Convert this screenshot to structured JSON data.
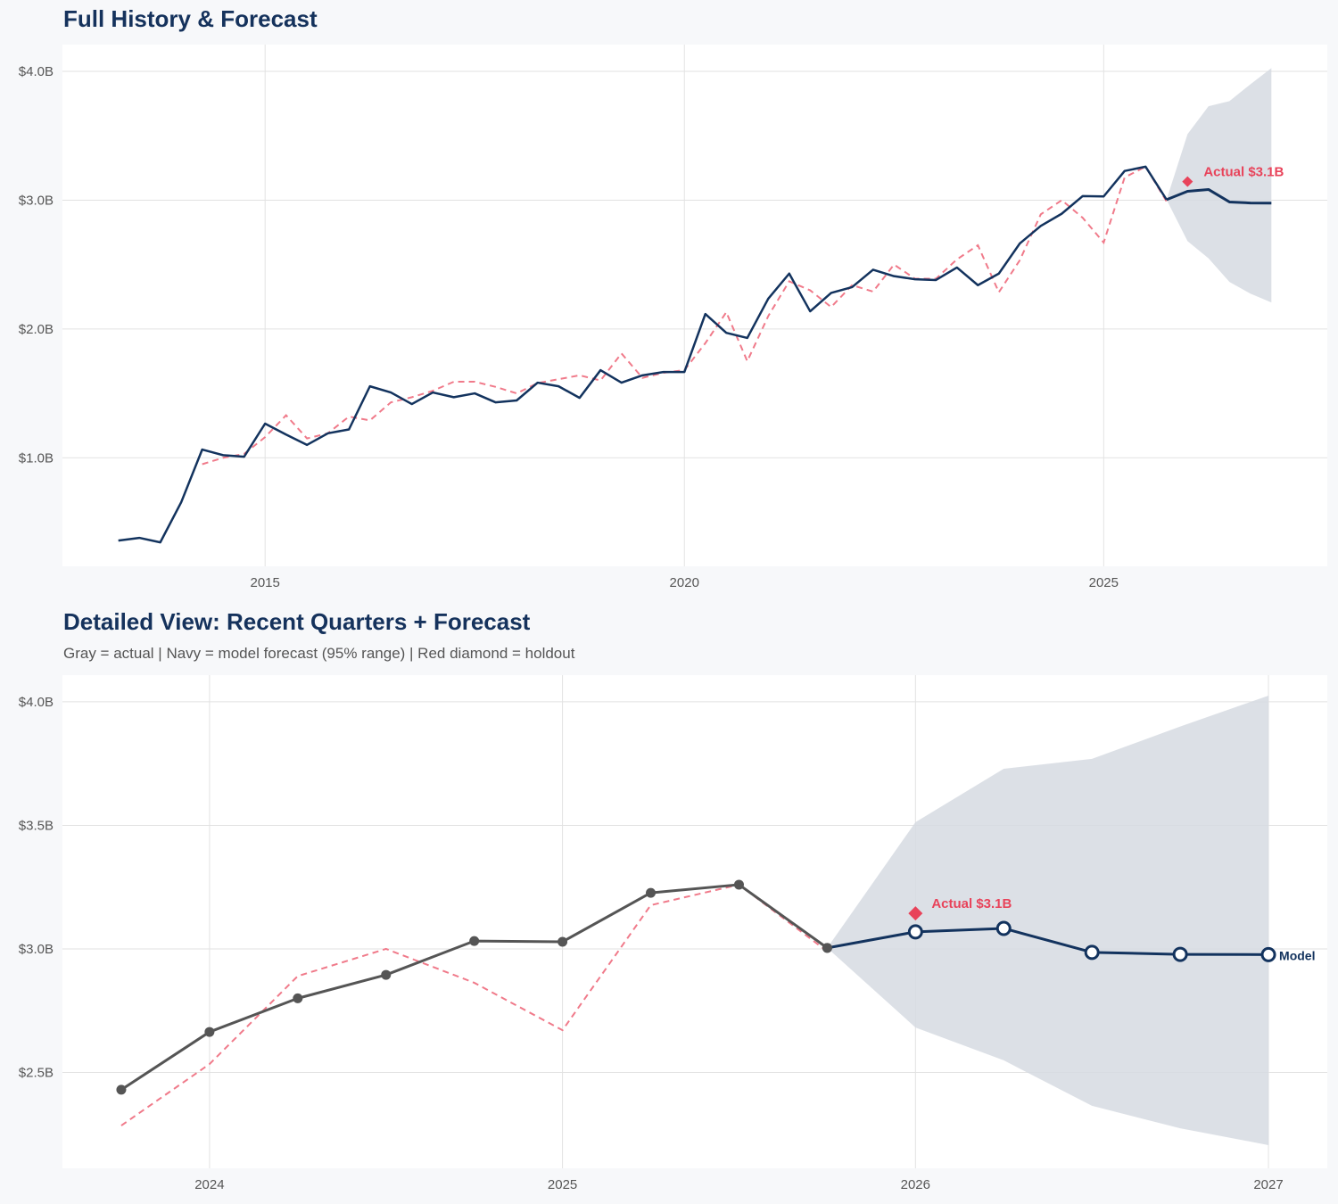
{
  "colors": {
    "history": "#13335e",
    "actual_recent": "#555555",
    "forecast": "#13335e",
    "fitted": "#f07a8a",
    "band": "#d6dbe2",
    "holdout": "#e8435a",
    "title": "#15325c"
  },
  "chart_data": [
    {
      "type": "line",
      "title": "Full History & Forecast",
      "xlim": [
        "2012-08",
        "2027-09"
      ],
      "ylim": [
        0.157,
        4.208
      ],
      "x_ticks": [
        "2015",
        "2020",
        "2025"
      ],
      "y_ticks": [
        {
          "value": 1.0,
          "label": "$1.0B"
        },
        {
          "value": 2.0,
          "label": "$2.0B"
        },
        {
          "value": 3.0,
          "label": "$3.0B"
        },
        {
          "value": 4.0,
          "label": "$4.0B"
        }
      ],
      "grid": true,
      "series": [
        {
          "role": "history",
          "style": "solid",
          "x": [
            "2013-04",
            "2013-07",
            "2013-10",
            "2014-01",
            "2014-04",
            "2014-07",
            "2014-10",
            "2015-01",
            "2015-04",
            "2015-07",
            "2015-10",
            "2016-01",
            "2016-04",
            "2016-07",
            "2016-10",
            "2017-01",
            "2017-04",
            "2017-07",
            "2017-10",
            "2018-01",
            "2018-04",
            "2018-07",
            "2018-10",
            "2019-01",
            "2019-04",
            "2019-07",
            "2019-10",
            "2020-01",
            "2020-04",
            "2020-07",
            "2020-10",
            "2021-01",
            "2021-04",
            "2021-07",
            "2021-10",
            "2022-01",
            "2022-04",
            "2022-07",
            "2022-10",
            "2023-01",
            "2023-04",
            "2023-07",
            "2023-10",
            "2024-01",
            "2024-04",
            "2024-07",
            "2024-10",
            "2025-01",
            "2025-04",
            "2025-07",
            "2025-10"
          ],
          "y": [
            0.357,
            0.378,
            0.343,
            0.655,
            1.064,
            1.02,
            1.008,
            1.265,
            1.18,
            1.1,
            1.19,
            1.22,
            1.555,
            1.507,
            1.417,
            1.507,
            1.47,
            1.5,
            1.43,
            1.445,
            1.583,
            1.555,
            1.465,
            1.68,
            1.583,
            1.64,
            1.666,
            1.666,
            2.116,
            1.97,
            1.93,
            2.235,
            2.43,
            2.137,
            2.28,
            2.325,
            2.46,
            2.41,
            2.386,
            2.38,
            2.477,
            2.34,
            2.43,
            2.664,
            2.8,
            2.895,
            3.032,
            3.029,
            3.227,
            3.26,
            3.004
          ]
        },
        {
          "role": "fitted",
          "style": "dashed",
          "x": [
            "2014-04",
            "2014-07",
            "2014-10",
            "2015-01",
            "2015-04",
            "2015-07",
            "2015-10",
            "2016-01",
            "2016-04",
            "2016-07",
            "2016-10",
            "2017-01",
            "2017-04",
            "2017-07",
            "2017-10",
            "2018-01",
            "2018-04",
            "2018-07",
            "2018-10",
            "2019-01",
            "2019-04",
            "2019-07",
            "2019-10",
            "2020-01",
            "2020-04",
            "2020-07",
            "2020-10",
            "2021-01",
            "2021-04",
            "2021-07",
            "2021-10",
            "2022-01",
            "2022-04",
            "2022-07",
            "2022-10",
            "2023-01",
            "2023-04",
            "2023-07",
            "2023-10",
            "2024-01",
            "2024-04",
            "2024-07",
            "2024-10",
            "2025-01",
            "2025-04",
            "2025-07",
            "2025-10"
          ],
          "y": [
            0.95,
            1.0,
            1.03,
            1.16,
            1.33,
            1.15,
            1.19,
            1.32,
            1.29,
            1.43,
            1.47,
            1.52,
            1.59,
            1.59,
            1.55,
            1.5,
            1.58,
            1.61,
            1.64,
            1.6,
            1.81,
            1.62,
            1.66,
            1.68,
            1.89,
            2.13,
            1.75,
            2.1,
            2.37,
            2.3,
            2.17,
            2.34,
            2.29,
            2.5,
            2.39,
            2.39,
            2.54,
            2.65,
            2.285,
            2.534,
            2.89,
            3.0,
            2.863,
            2.671,
            3.177,
            3.26,
            2.99
          ]
        },
        {
          "role": "forecast",
          "style": "solid",
          "x": [
            "2025-10",
            "2026-01",
            "2026-04",
            "2026-07",
            "2026-10",
            "2027-01"
          ],
          "y": [
            3.004,
            3.069,
            3.083,
            2.986,
            2.978,
            2.977
          ],
          "upper": [
            3.004,
            3.513,
            3.729,
            3.769,
            3.9,
            4.025
          ],
          "lower": [
            3.004,
            2.682,
            2.549,
            2.365,
            2.274,
            2.206
          ]
        }
      ],
      "annotations": [
        {
          "x": "2026-01",
          "y": 3.144,
          "marker": "diamond",
          "label": "Actual $3.1B"
        }
      ]
    },
    {
      "type": "line",
      "title": "Detailed View: Recent Quarters + Forecast",
      "subtitle": "Gray = actual  |  Navy = model forecast (95% range)  |  Red diamond = holdout",
      "xlim": [
        "2023-08",
        "2027-03"
      ],
      "ylim": [
        2.112,
        4.108
      ],
      "x_ticks": [
        "2024",
        "2025",
        "2026",
        "2027"
      ],
      "y_ticks": [
        {
          "value": 2.5,
          "label": "$2.5B"
        },
        {
          "value": 3.0,
          "label": "$3.0B"
        },
        {
          "value": 3.5,
          "label": "$3.5B"
        },
        {
          "value": 4.0,
          "label": "$4.0B"
        }
      ],
      "grid": true,
      "series": [
        {
          "role": "actual",
          "style": "solid-markers",
          "x": [
            "2023-10",
            "2024-01",
            "2024-04",
            "2024-07",
            "2024-10",
            "2025-01",
            "2025-04",
            "2025-07",
            "2025-10"
          ],
          "y": [
            2.43,
            2.664,
            2.8,
            2.895,
            3.032,
            3.029,
            3.227,
            3.26,
            3.004
          ]
        },
        {
          "role": "fitted",
          "style": "dashed",
          "x": [
            "2023-10",
            "2024-01",
            "2024-04",
            "2024-07",
            "2024-10",
            "2025-01",
            "2025-04",
            "2025-07",
            "2025-10"
          ],
          "y": [
            2.285,
            2.534,
            2.89,
            3.0,
            2.863,
            2.671,
            3.177,
            3.26,
            2.99
          ]
        },
        {
          "role": "forecast",
          "style": "solid-open-markers",
          "name": "Model",
          "x": [
            "2025-10",
            "2026-01",
            "2026-04",
            "2026-07",
            "2026-10",
            "2027-01"
          ],
          "y": [
            3.004,
            3.069,
            3.083,
            2.986,
            2.978,
            2.977
          ],
          "upper": [
            3.004,
            3.513,
            3.729,
            3.769,
            3.9,
            4.025
          ],
          "lower": [
            3.004,
            2.682,
            2.549,
            2.365,
            2.274,
            2.206
          ]
        }
      ],
      "annotations": [
        {
          "x": "2026-01",
          "y": 3.144,
          "marker": "diamond",
          "label": "Actual $3.1B"
        }
      ]
    }
  ]
}
